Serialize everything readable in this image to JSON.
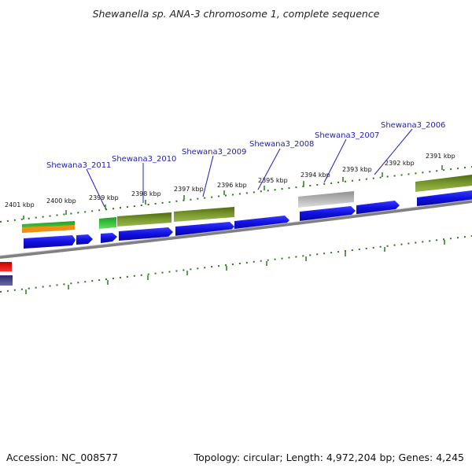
{
  "title": "Shewanella sp. ANA-3 chromosome 1, complete sequence",
  "footer": {
    "accession": "Accession: NC_008577",
    "summary": "Topology: circular; Length: 4,972,204 bp; Genes: 4,245"
  },
  "scale_labels": [
    "2401 kbp",
    "2400 kbp",
    "2399 kbp",
    "2398 kbp",
    "2397 kbp",
    "2396 kbp",
    "2395 kbp",
    "2394 kbp",
    "2393 kbp",
    "2392 kbp",
    "2391 kbp"
  ],
  "gene_labels": [
    "Shewana3_2011",
    "Shewana3_2010",
    "Shewana3_2009",
    "Shewana3_2008",
    "Shewana3_2007",
    "Shewana3_2006"
  ],
  "colors": {
    "cds": "#1010e0",
    "gene_green": "#3cc83c",
    "gene_olive": "#6e8c28",
    "gene_orange": "#f09010",
    "gene_gray": "#b4b4b4",
    "gene_red": "#e01010",
    "gene_navy": "#4a4a8a",
    "backbone": "#808080",
    "tick": "#2a7a1a",
    "label": "#1f1fb0"
  }
}
